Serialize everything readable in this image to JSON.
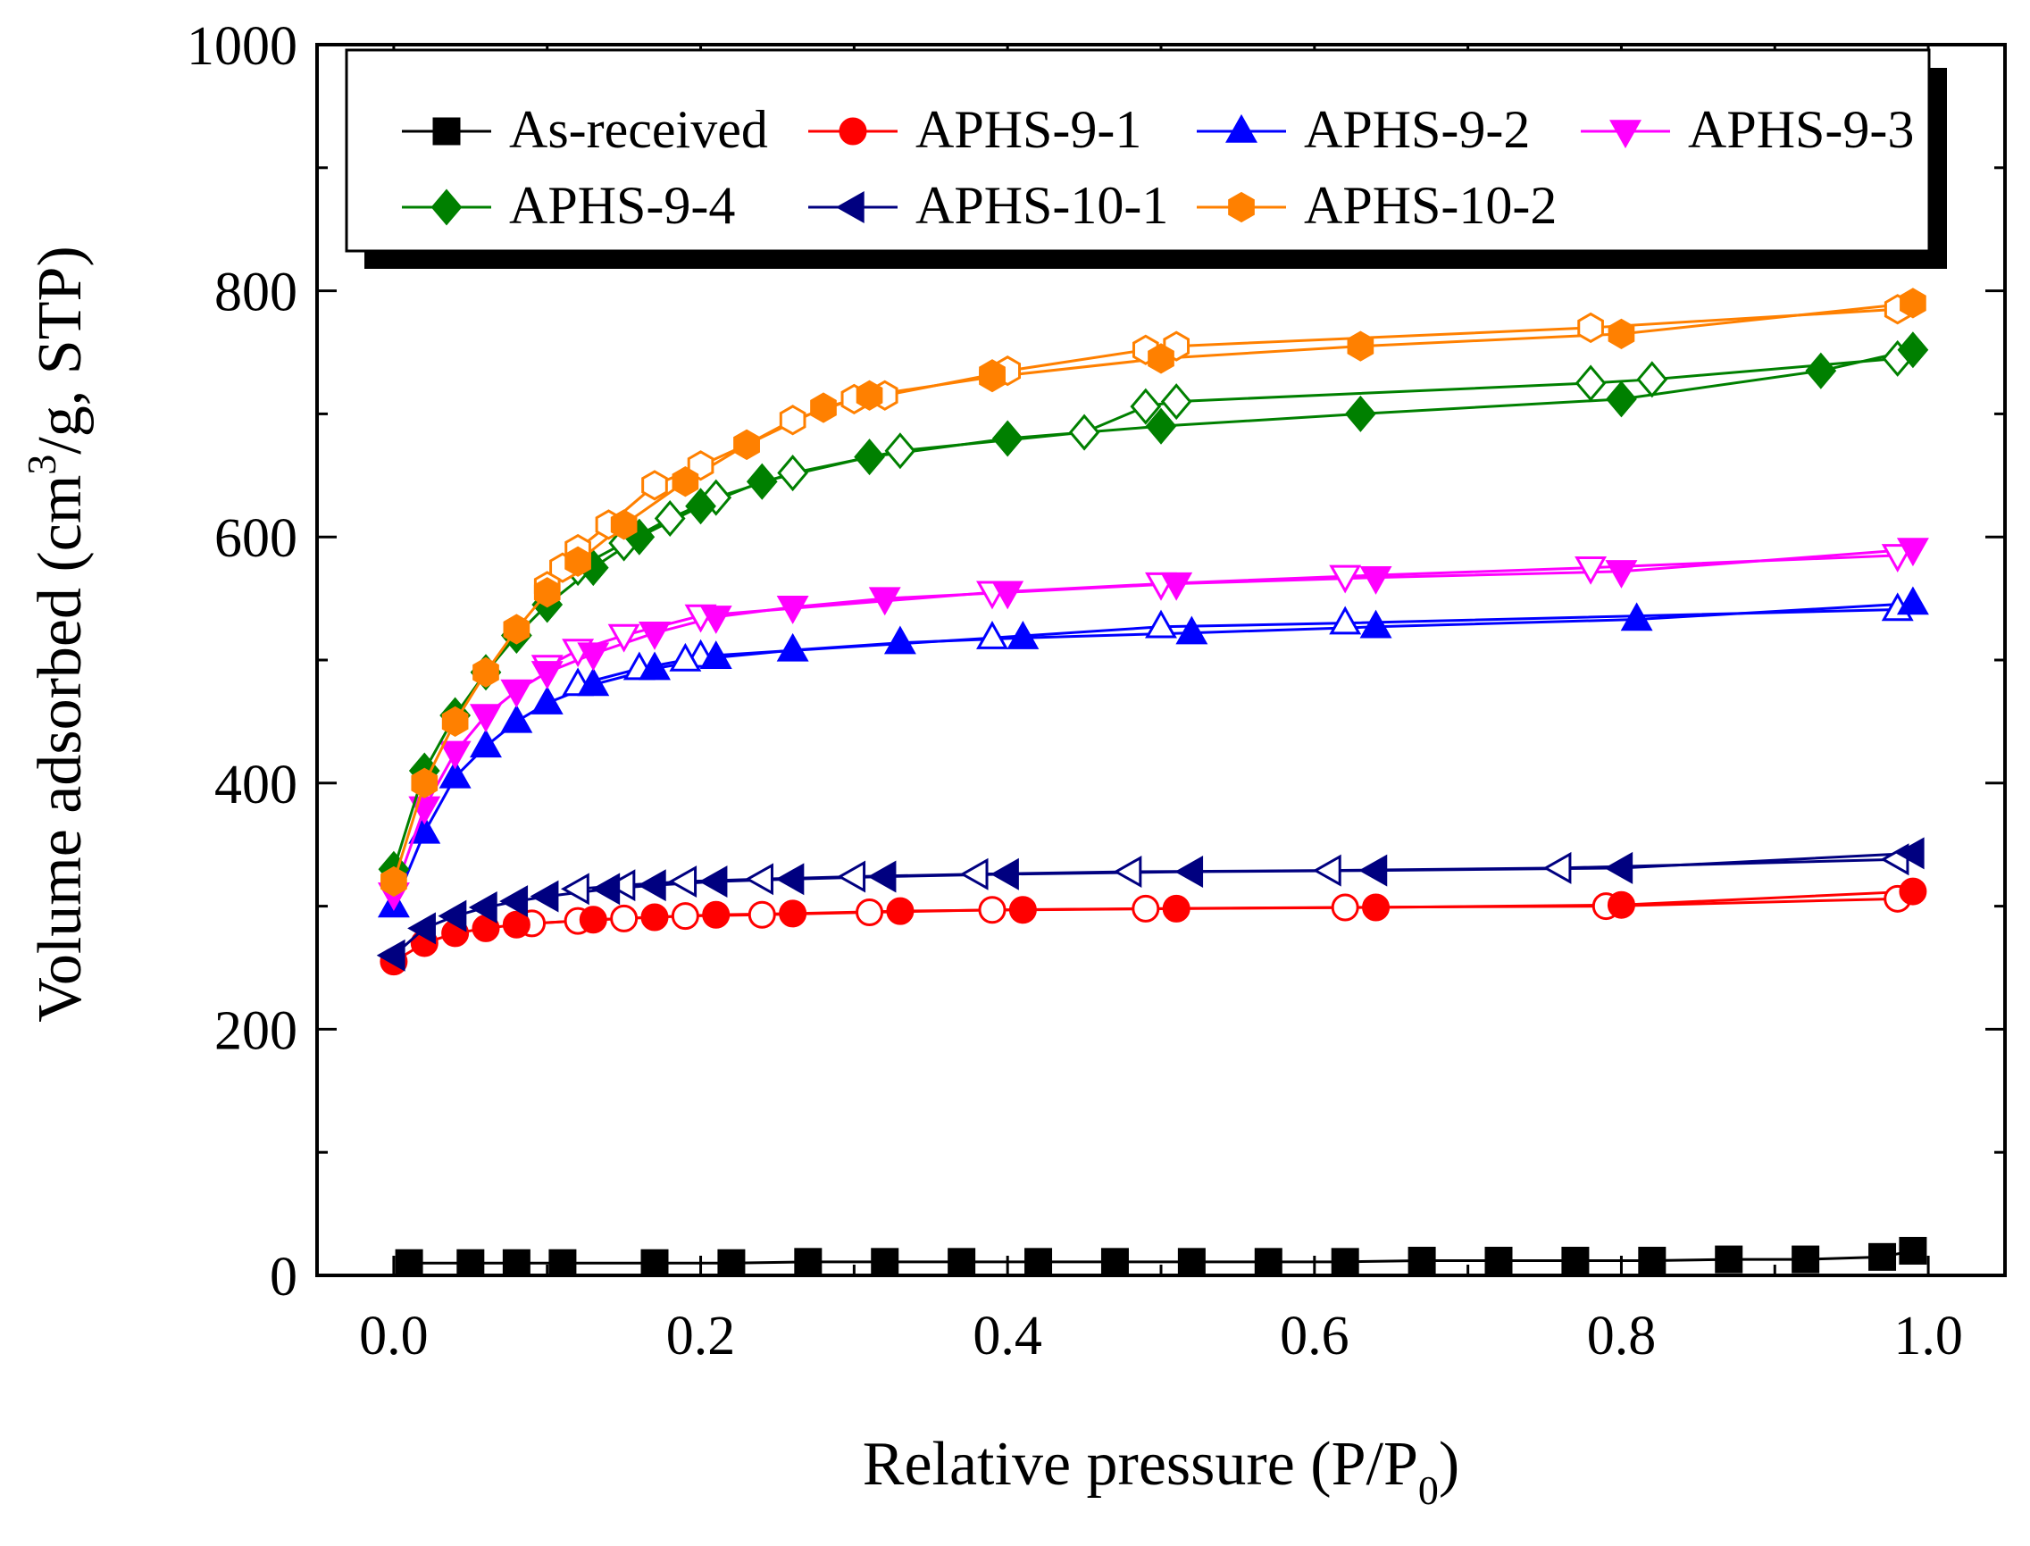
{
  "chart_data": {
    "type": "scatter",
    "title": "",
    "xlabel": {
      "main": "Relative pressure (P/P",
      "sub": "0",
      "end": ")"
    },
    "ylabel": {
      "pre": "Volume adsorbed (cm",
      "sup": "3",
      "post": "/g, STP)"
    },
    "xlim": [
      -0.05,
      1.05
    ],
    "ylim": [
      0,
      1000
    ],
    "x_ticks": [
      "0.0",
      "0.2",
      "0.4",
      "0.6",
      "0.8",
      "1.0"
    ],
    "y_ticks": [
      "0",
      "200",
      "400",
      "600",
      "800",
      "1000"
    ],
    "grid": false,
    "legend_position": "top",
    "series": [
      {
        "name": "As-received",
        "color": "#000000",
        "marker": "square",
        "adsorption": [
          [
            0.01,
            10
          ],
          [
            0.05,
            10
          ],
          [
            0.08,
            10
          ],
          [
            0.11,
            10
          ],
          [
            0.17,
            10
          ],
          [
            0.22,
            10
          ],
          [
            0.27,
            11
          ],
          [
            0.32,
            11
          ],
          [
            0.37,
            11
          ],
          [
            0.42,
            11
          ],
          [
            0.47,
            11
          ],
          [
            0.52,
            11
          ],
          [
            0.57,
            11
          ],
          [
            0.62,
            11
          ],
          [
            0.67,
            12
          ],
          [
            0.72,
            12
          ],
          [
            0.77,
            12
          ],
          [
            0.82,
            12
          ],
          [
            0.87,
            13
          ],
          [
            0.92,
            13
          ],
          [
            0.97,
            15
          ],
          [
            0.99,
            20
          ]
        ],
        "desorption": []
      },
      {
        "name": "APHS-9-1",
        "color": "#ff0000",
        "marker": "circle",
        "adsorption": [
          [
            0.0,
            255
          ],
          [
            0.02,
            270
          ],
          [
            0.04,
            278
          ],
          [
            0.06,
            282
          ],
          [
            0.08,
            285
          ],
          [
            0.13,
            289
          ],
          [
            0.17,
            291
          ],
          [
            0.21,
            293
          ],
          [
            0.26,
            294
          ],
          [
            0.33,
            296
          ],
          [
            0.41,
            297
          ],
          [
            0.51,
            298
          ],
          [
            0.64,
            299
          ],
          [
            0.8,
            301
          ],
          [
            0.99,
            312
          ]
        ],
        "desorption": [
          [
            0.98,
            306
          ],
          [
            0.79,
            300
          ],
          [
            0.62,
            299
          ],
          [
            0.49,
            298
          ],
          [
            0.39,
            297
          ],
          [
            0.31,
            295
          ],
          [
            0.24,
            293
          ],
          [
            0.19,
            292
          ],
          [
            0.15,
            290
          ],
          [
            0.12,
            288
          ],
          [
            0.09,
            286
          ]
        ]
      },
      {
        "name": "APHS-9-2",
        "color": "#0000ff",
        "marker": "triangle-up",
        "adsorption": [
          [
            0.0,
            300
          ],
          [
            0.02,
            360
          ],
          [
            0.04,
            405
          ],
          [
            0.06,
            430
          ],
          [
            0.08,
            450
          ],
          [
            0.1,
            465
          ],
          [
            0.13,
            480
          ],
          [
            0.17,
            493
          ],
          [
            0.21,
            502
          ],
          [
            0.26,
            508
          ],
          [
            0.33,
            514
          ],
          [
            0.41,
            518
          ],
          [
            0.52,
            522
          ],
          [
            0.64,
            527
          ],
          [
            0.81,
            533
          ],
          [
            0.99,
            546
          ]
        ],
        "desorption": [
          [
            0.98,
            541
          ],
          [
            0.62,
            530
          ],
          [
            0.5,
            527
          ],
          [
            0.39,
            518
          ],
          [
            0.2,
            503
          ],
          [
            0.19,
            500
          ],
          [
            0.16,
            493
          ],
          [
            0.12,
            480
          ]
        ]
      },
      {
        "name": "APHS-9-3",
        "color": "#ff00ff",
        "marker": "triangle-down",
        "adsorption": [
          [
            0.0,
            310
          ],
          [
            0.02,
            380
          ],
          [
            0.04,
            425
          ],
          [
            0.06,
            455
          ],
          [
            0.08,
            475
          ],
          [
            0.1,
            490
          ],
          [
            0.13,
            505
          ],
          [
            0.17,
            522
          ],
          [
            0.21,
            535
          ],
          [
            0.26,
            543
          ],
          [
            0.32,
            550
          ],
          [
            0.4,
            555
          ],
          [
            0.51,
            562
          ],
          [
            0.64,
            567
          ],
          [
            0.8,
            572
          ],
          [
            0.99,
            590
          ]
        ],
        "desorption": [
          [
            0.98,
            585
          ],
          [
            0.78,
            575
          ],
          [
            0.62,
            568
          ],
          [
            0.5,
            562
          ],
          [
            0.39,
            555
          ],
          [
            0.2,
            536
          ],
          [
            0.15,
            520
          ],
          [
            0.12,
            508
          ],
          [
            0.1,
            495
          ]
        ]
      },
      {
        "name": "APHS-9-4",
        "color": "#008000",
        "marker": "diamond",
        "adsorption": [
          [
            0.0,
            330
          ],
          [
            0.02,
            410
          ],
          [
            0.04,
            455
          ],
          [
            0.06,
            490
          ],
          [
            0.08,
            520
          ],
          [
            0.1,
            545
          ],
          [
            0.13,
            575
          ],
          [
            0.16,
            600
          ],
          [
            0.2,
            625
          ],
          [
            0.24,
            645
          ],
          [
            0.31,
            665
          ],
          [
            0.4,
            680
          ],
          [
            0.5,
            690
          ],
          [
            0.63,
            700
          ],
          [
            0.8,
            712
          ],
          [
            0.93,
            735
          ],
          [
            0.99,
            752
          ]
        ],
        "desorption": [
          [
            0.98,
            745
          ],
          [
            0.82,
            728
          ],
          [
            0.78,
            725
          ],
          [
            0.51,
            710
          ],
          [
            0.49,
            706
          ],
          [
            0.45,
            685
          ],
          [
            0.33,
            670
          ],
          [
            0.26,
            652
          ],
          [
            0.21,
            632
          ],
          [
            0.18,
            615
          ],
          [
            0.15,
            595
          ],
          [
            0.12,
            575
          ]
        ]
      },
      {
        "name": "APHS-10-1",
        "color": "#000080",
        "marker": "triangle-left",
        "adsorption": [
          [
            0.0,
            260
          ],
          [
            0.02,
            282
          ],
          [
            0.04,
            292
          ],
          [
            0.06,
            299
          ],
          [
            0.08,
            304
          ],
          [
            0.1,
            308
          ],
          [
            0.14,
            314
          ],
          [
            0.17,
            317
          ],
          [
            0.21,
            320
          ],
          [
            0.26,
            322
          ],
          [
            0.32,
            324
          ],
          [
            0.4,
            326
          ],
          [
            0.52,
            328
          ],
          [
            0.64,
            329
          ],
          [
            0.8,
            331
          ],
          [
            0.99,
            343
          ]
        ],
        "desorption": [
          [
            0.98,
            338
          ],
          [
            0.76,
            331
          ],
          [
            0.61,
            329
          ],
          [
            0.48,
            328
          ],
          [
            0.38,
            326
          ],
          [
            0.3,
            324
          ],
          [
            0.24,
            322
          ],
          [
            0.19,
            320
          ],
          [
            0.15,
            317
          ],
          [
            0.12,
            314
          ]
        ]
      },
      {
        "name": "APHS-10-2",
        "color": "#ff8000",
        "marker": "hexagon",
        "adsorption": [
          [
            0.0,
            320
          ],
          [
            0.02,
            400
          ],
          [
            0.04,
            450
          ],
          [
            0.06,
            490
          ],
          [
            0.08,
            525
          ],
          [
            0.1,
            555
          ],
          [
            0.12,
            580
          ],
          [
            0.15,
            610
          ],
          [
            0.19,
            645
          ],
          [
            0.23,
            675
          ],
          [
            0.28,
            705
          ],
          [
            0.31,
            715
          ],
          [
            0.39,
            730
          ],
          [
            0.5,
            745
          ],
          [
            0.63,
            755
          ],
          [
            0.8,
            765
          ],
          [
            0.99,
            790
          ]
        ],
        "desorption": [
          [
            0.98,
            785
          ],
          [
            0.78,
            770
          ],
          [
            0.51,
            755
          ],
          [
            0.49,
            752
          ],
          [
            0.4,
            735
          ],
          [
            0.39,
            732
          ],
          [
            0.32,
            715
          ],
          [
            0.3,
            712
          ],
          [
            0.26,
            695
          ],
          [
            0.23,
            675
          ],
          [
            0.2,
            658
          ],
          [
            0.17,
            642
          ],
          [
            0.14,
            610
          ],
          [
            0.12,
            590
          ],
          [
            0.11,
            575
          ],
          [
            0.1,
            560
          ]
        ]
      }
    ]
  }
}
